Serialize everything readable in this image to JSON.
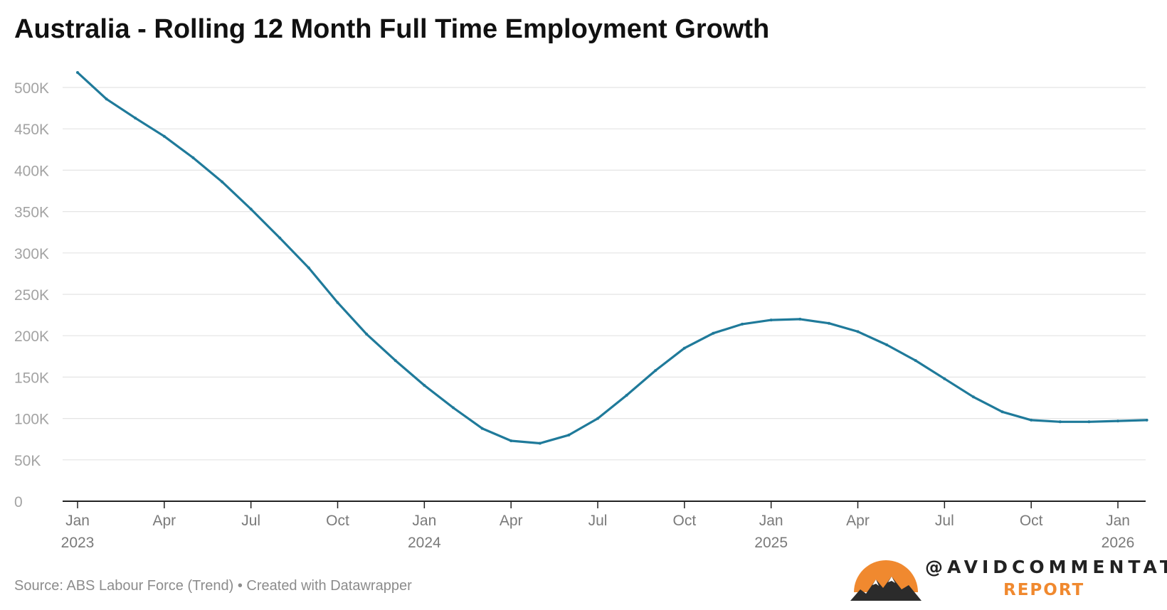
{
  "chart_data": {
    "type": "line",
    "title": "Australia - Rolling 12 Month Full Time Employment Growth",
    "xlabel": "",
    "ylabel": "",
    "ylim": [
      0,
      500000
    ],
    "yticks": [
      0,
      50000,
      100000,
      150000,
      200000,
      250000,
      300000,
      350000,
      400000,
      450000,
      500000
    ],
    "ytick_labels": [
      "0",
      "50K",
      "100K",
      "150K",
      "200K",
      "250K",
      "300K",
      "350K",
      "400K",
      "450K",
      "500K"
    ],
    "xlim": [
      "2023-01",
      "2026-02"
    ],
    "xticks": [
      {
        "date": "2023-01",
        "label": "Jan",
        "year": "2023"
      },
      {
        "date": "2023-04",
        "label": "Apr",
        "year": ""
      },
      {
        "date": "2023-07",
        "label": "Jul",
        "year": ""
      },
      {
        "date": "2023-10",
        "label": "Oct",
        "year": ""
      },
      {
        "date": "2024-01",
        "label": "Jan",
        "year": "2024"
      },
      {
        "date": "2024-04",
        "label": "Apr",
        "year": ""
      },
      {
        "date": "2024-07",
        "label": "Jul",
        "year": ""
      },
      {
        "date": "2024-10",
        "label": "Oct",
        "year": ""
      },
      {
        "date": "2025-01",
        "label": "Jan",
        "year": "2025"
      },
      {
        "date": "2025-04",
        "label": "Apr",
        "year": ""
      },
      {
        "date": "2025-07",
        "label": "Jul",
        "year": ""
      },
      {
        "date": "2025-10",
        "label": "Oct",
        "year": ""
      },
      {
        "date": "2026-01",
        "label": "Jan",
        "year": "2026"
      }
    ],
    "grid": true,
    "line_color": "#1f7a9a",
    "series": [
      {
        "x": [
          "2023-01",
          "2023-02",
          "2023-03",
          "2023-04",
          "2023-05",
          "2023-06",
          "2023-07",
          "2023-08",
          "2023-09",
          "2023-10",
          "2023-11",
          "2023-12",
          "2024-01",
          "2024-02",
          "2024-03",
          "2024-04",
          "2024-05",
          "2024-06",
          "2024-07",
          "2024-08",
          "2024-09",
          "2024-10",
          "2024-11",
          "2024-12",
          "2025-01",
          "2025-02",
          "2025-03",
          "2025-04",
          "2025-05",
          "2025-06",
          "2025-07",
          "2025-08",
          "2025-09",
          "2025-10",
          "2025-11",
          "2025-12",
          "2026-01",
          "2026-02"
        ],
        "values": [
          518000,
          486000,
          463000,
          441000,
          415000,
          386000,
          353000,
          318000,
          282000,
          240000,
          202000,
          170000,
          140000,
          113000,
          88000,
          73000,
          70000,
          80000,
          100000,
          128000,
          158000,
          185000,
          203000,
          214000,
          219000,
          220000,
          215000,
          205000,
          189000,
          170000,
          148000,
          126000,
          108000,
          98000,
          96000,
          96000,
          97000,
          98000
        ]
      }
    ]
  },
  "source": "Source: ABS Labour Force (Trend) • Created with Datawrapper",
  "brand": {
    "handle": "@AVIDCOMMENTATOR",
    "sub": "REPORT",
    "logo_icon": "sun-mountain-logo",
    "accent": "#f0892f"
  }
}
